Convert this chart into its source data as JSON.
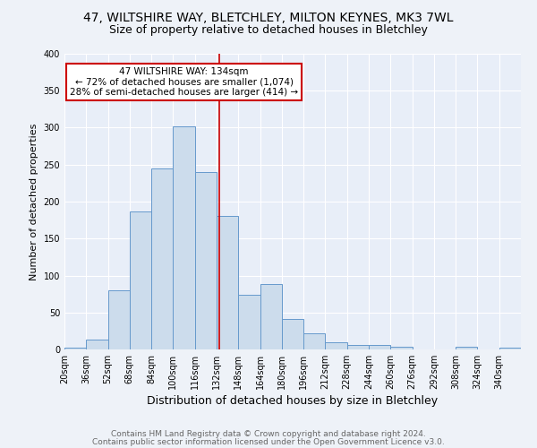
{
  "title": "47, WILTSHIRE WAY, BLETCHLEY, MILTON KEYNES, MK3 7WL",
  "subtitle": "Size of property relative to detached houses in Bletchley",
  "xlabel": "Distribution of detached houses by size in Bletchley",
  "ylabel": "Number of detached properties",
  "bin_labels": [
    "20sqm",
    "36sqm",
    "52sqm",
    "68sqm",
    "84sqm",
    "100sqm",
    "116sqm",
    "132sqm",
    "148sqm",
    "164sqm",
    "180sqm",
    "196sqm",
    "212sqm",
    "228sqm",
    "244sqm",
    "260sqm",
    "276sqm",
    "292sqm",
    "308sqm",
    "324sqm",
    "340sqm"
  ],
  "bar_values": [
    3,
    13,
    80,
    187,
    245,
    302,
    240,
    181,
    74,
    88,
    41,
    22,
    10,
    6,
    6,
    4,
    0,
    0,
    4,
    0,
    3
  ],
  "bar_color": "#ccdcec",
  "bar_edge_color": "#6699cc",
  "ref_line_x": 134,
  "ref_line_label": "47 WILTSHIRE WAY: 134sqm",
  "annotation_line1": "← 72% of detached houses are smaller (1,074)",
  "annotation_line2": "28% of semi-detached houses are larger (414) →",
  "annotation_box_color": "#ffffff",
  "annotation_box_edge": "#cc0000",
  "ref_line_color": "#cc0000",
  "footer1": "Contains HM Land Registry data © Crown copyright and database right 2024.",
  "footer2": "Contains public sector information licensed under the Open Government Licence v3.0.",
  "ylim": [
    0,
    400
  ],
  "yticks": [
    0,
    50,
    100,
    150,
    200,
    250,
    300,
    350,
    400
  ],
  "bg_color": "#eef2f8",
  "plot_bg_color": "#e8eef8",
  "grid_color": "#ffffff",
  "title_fontsize": 10,
  "subtitle_fontsize": 9,
  "xlabel_fontsize": 9,
  "ylabel_fontsize": 8,
  "tick_fontsize": 7,
  "annot_fontsize": 7.5,
  "footer_fontsize": 6.5
}
